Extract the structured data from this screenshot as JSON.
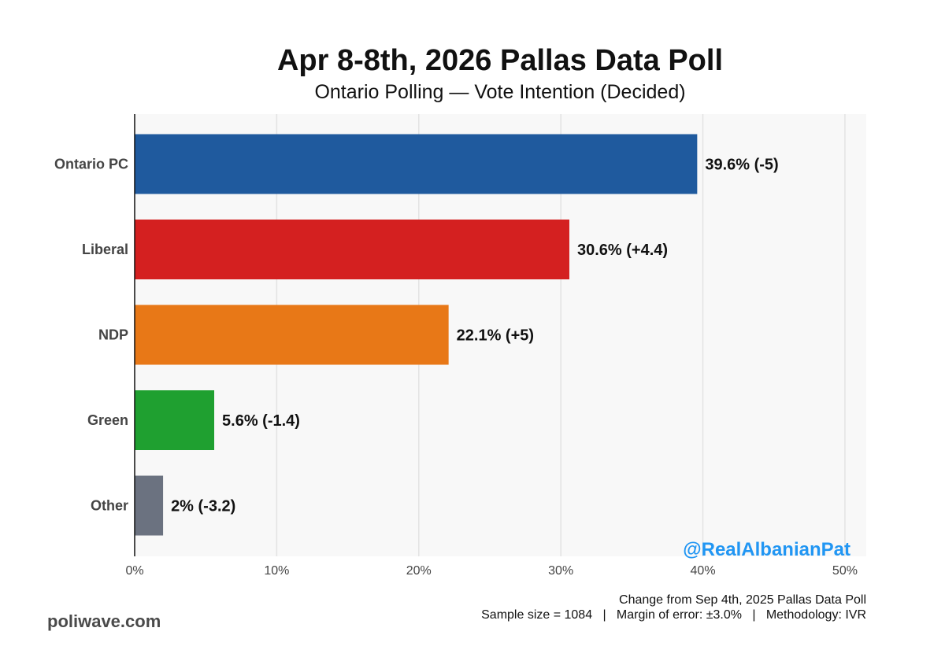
{
  "header": {
    "title": "Apr 8-8th, 2026 Pallas Data Poll",
    "subtitle": "Ontario Polling — Vote Intention (Decided)"
  },
  "chart_data": {
    "type": "bar",
    "orientation": "horizontal",
    "categories": [
      "Ontario PC",
      "Liberal",
      "NDP",
      "Green",
      "Other"
    ],
    "values": [
      39.6,
      30.6,
      22.1,
      5.6,
      2
    ],
    "changes": [
      -5,
      4.4,
      5,
      -1.4,
      -3.2
    ],
    "data_labels": [
      "39.6% (-5)",
      "30.6% (+4.4)",
      "22.1% (+5)",
      "5.6% (-1.4)",
      "2% (-3.2)"
    ],
    "colors": [
      "#1f5a9e",
      "#d42020",
      "#e87817",
      "#1fa030",
      "#6b7280"
    ],
    "xlim": [
      0,
      51.5
    ],
    "xticks": [
      0,
      10,
      20,
      30,
      40,
      50
    ],
    "xtick_labels": [
      "0%",
      "10%",
      "20%",
      "30%",
      "40%",
      "50%"
    ],
    "grid": "vertical",
    "panel_background": "#f8f8f8",
    "watermark": "@RealAlbanianPat",
    "watermark_color": "#2196f3"
  },
  "footer": {
    "line1": "Change from Sep 4th, 2025 Pallas Data Poll",
    "line2": "Sample size = 1084   |   Margin of error: ±3.0%   |   Methodology: IVR",
    "site": "poliwave.com"
  }
}
